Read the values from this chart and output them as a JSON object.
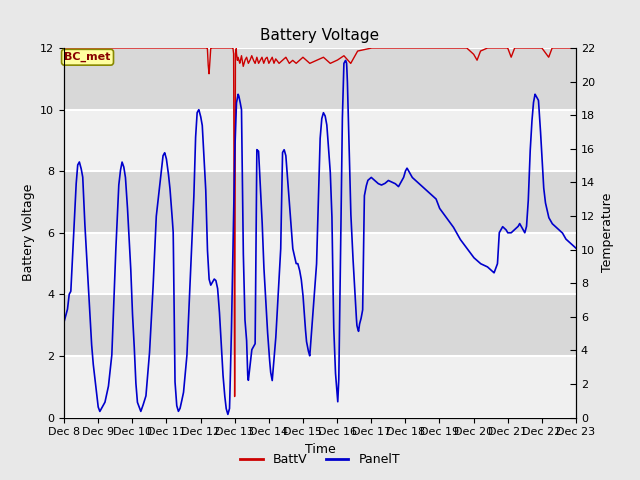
{
  "title": "Battery Voltage",
  "xlabel": "Time",
  "ylabel_left": "Battery Voltage",
  "ylabel_right": "Temperature",
  "ylim_left": [
    0,
    12
  ],
  "ylim_right": [
    0,
    22
  ],
  "yticks_left": [
    0,
    2,
    4,
    6,
    8,
    10,
    12
  ],
  "yticks_right": [
    0,
    2,
    4,
    6,
    8,
    10,
    12,
    14,
    16,
    18,
    20,
    22
  ],
  "xtick_labels": [
    "Dec 8",
    "Dec 9",
    "Dec 10",
    "Dec 11",
    "Dec 12",
    "Dec 13",
    "Dec 14",
    "Dec 15",
    "Dec 16",
    "Dec 17",
    "Dec 18",
    "Dec 19",
    "Dec 20",
    "Dec 21",
    "Dec 22",
    "Dec 23"
  ],
  "fig_bg_color": "#e8e8e8",
  "plot_bg_color": "#e8e8e8",
  "band_light": "#f0f0f0",
  "band_dark": "#d8d8d8",
  "batt_color": "#cc0000",
  "panel_color": "#0000cc",
  "label_box_text": "BC_met",
  "label_box_bg": "#ffffa0",
  "label_box_edge": "#888800",
  "legend_batt": "BattV",
  "legend_panel": "PanelT",
  "title_fontsize": 11,
  "axis_fontsize": 9,
  "tick_fontsize": 8
}
